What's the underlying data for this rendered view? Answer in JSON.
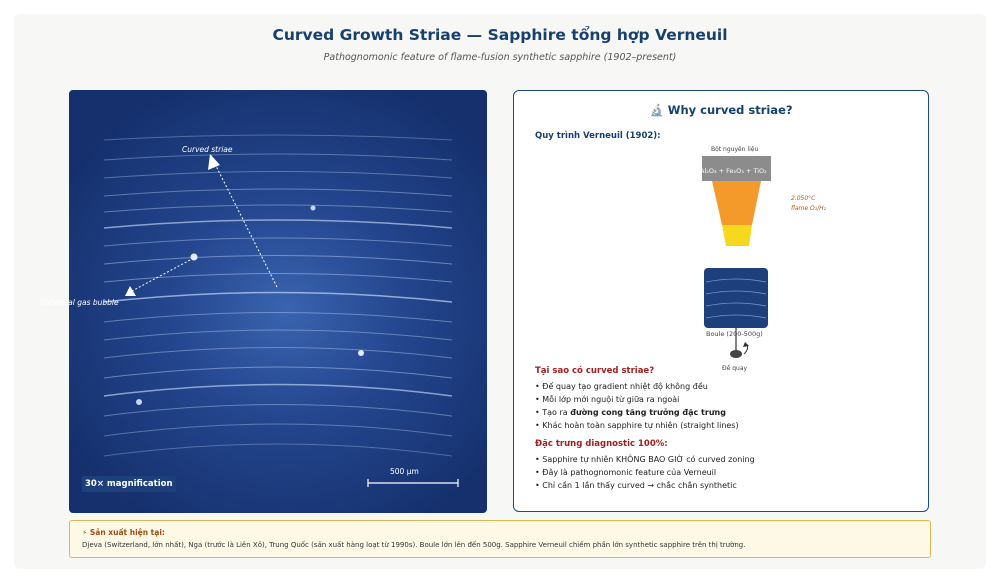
{
  "header": {
    "title": "Curved Growth Striae — Sapphire tổng hợp Verneuil",
    "subtitle": "Pathognomonic feature of flame-fusion synthetic sapphire (1902–present)"
  },
  "micrograph": {
    "label_curved": "Curved striae",
    "label_bubble": "Spherical gas bubble",
    "scale_label": "500 μm",
    "magnification": "30× magnification"
  },
  "panel": {
    "title": "🔬 Why curved striae?",
    "process_heading": "Quy trình Verneuil (1902):",
    "diagram": {
      "feed_label": "Bột nguyên liệu",
      "feed_formula": "Al₂O₃ + Fe₂O₃ + TiO₂",
      "flame_label_1": "2.050°C",
      "flame_label_2": "flame O₂/H₂",
      "boule_label": "Boule (200-500g)",
      "rotate_label": "Đế quay"
    },
    "why_heading": "Tại sao có curved striae?",
    "why_items": [
      "Đế quay tạo gradient nhiệt độ không đều",
      "Mỗi lớp mới nguội từ giữa ra ngoài",
      "Khác hoàn toàn sapphire tự nhiên (straight lines)"
    ],
    "why_item3_pre": "Tạo ra ",
    "why_item3_bold": "đường cong tăng trưởng đặc trưng",
    "diag_heading": "Đặc trưng diagnostic 100%:",
    "diag_items": [
      "Sapphire tự nhiên KHÔNG BAO GIỜ có curved zoning",
      "Đây là pathognomonic feature của Verneuil",
      "Chỉ cần 1 lần thấy curved → chắc chắn synthetic"
    ]
  },
  "footer": {
    "heading": "⚡ Sản xuất hiện tại:",
    "body": "Djeva (Switzerland, lớn nhất), Nga (trước là Liên Xô), Trung Quốc (sản xuất hàng loạt từ 1990s). Boule lớn lên đến 500g. Sapphire Verneuil chiếm phần lớn synthetic sapphire trên thị trường."
  },
  "colors": {
    "title": "#17406e",
    "micro_center": "#3a64b0",
    "micro_edge": "#15306d",
    "flame_orange": "#f39a2a",
    "flame_yellow": "#f6d81e",
    "boule": "#1d3f7c",
    "warn_red": "#a02020"
  }
}
